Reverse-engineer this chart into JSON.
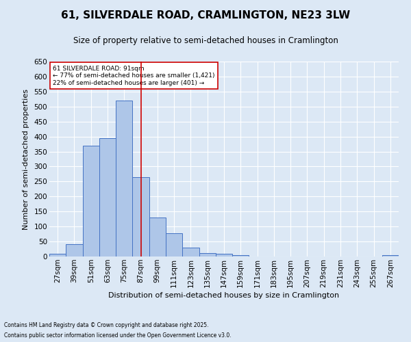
{
  "title": "61, SILVERDALE ROAD, CRAMLINGTON, NE23 3LW",
  "subtitle": "Size of property relative to semi-detached houses in Cramlington",
  "xlabel": "Distribution of semi-detached houses by size in Cramlington",
  "ylabel": "Number of semi-detached properties",
  "footnote1": "Contains HM Land Registry data © Crown copyright and database right 2025.",
  "footnote2": "Contains public sector information licensed under the Open Government Licence v3.0.",
  "bin_labels": [
    "27sqm",
    "39sqm",
    "51sqm",
    "63sqm",
    "75sqm",
    "87sqm",
    "99sqm",
    "111sqm",
    "123sqm",
    "135sqm",
    "147sqm",
    "159sqm",
    "171sqm",
    "183sqm",
    "195sqm",
    "207sqm",
    "219sqm",
    "231sqm",
    "243sqm",
    "255sqm",
    "267sqm"
  ],
  "bar_heights": [
    8,
    40,
    370,
    395,
    520,
    265,
    130,
    77,
    30,
    12,
    9,
    4,
    0,
    0,
    0,
    0,
    0,
    0,
    0,
    0,
    4
  ],
  "bar_color": "#aec6e8",
  "bar_edge_color": "#4472c4",
  "property_bin_index": 5,
  "vline_color": "#cc0000",
  "annotation_text": "61 SILVERDALE ROAD: 91sqm\n← 77% of semi-detached houses are smaller (1,421)\n22% of semi-detached houses are larger (401) →",
  "annotation_box_color": "#ffffff",
  "annotation_box_edge": "#cc0000",
  "ylim": [
    0,
    650
  ],
  "yticks": [
    0,
    50,
    100,
    150,
    200,
    250,
    300,
    350,
    400,
    450,
    500,
    550,
    600,
    650
  ],
  "background_color": "#dce8f5",
  "grid_color": "#ffffff",
  "title_fontsize": 11,
  "subtitle_fontsize": 8.5,
  "axis_label_fontsize": 8,
  "tick_fontsize": 7.5,
  "footnote_fontsize": 5.5
}
